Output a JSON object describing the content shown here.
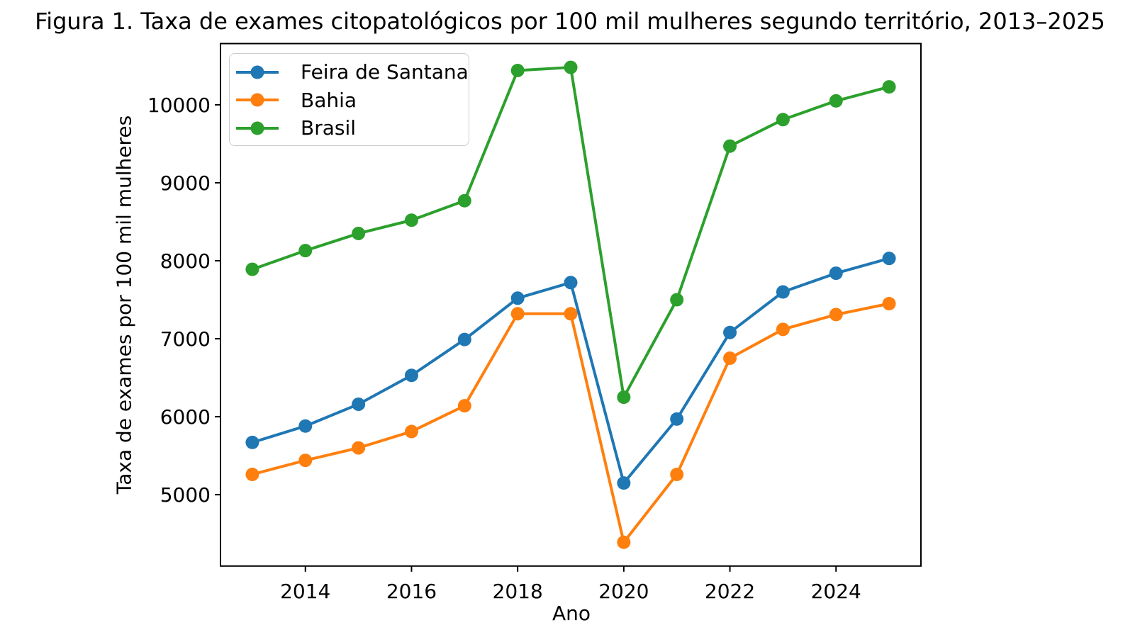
{
  "chart_data": {
    "type": "line",
    "title": "Figura 1. Taxa de exames citopatológicos por 100 mil mulheres segundo território, 2013–2025",
    "xlabel": "Ano",
    "ylabel": "Taxa de exames por 100 mil mulheres",
    "x": [
      2013,
      2014,
      2015,
      2016,
      2017,
      2018,
      2019,
      2020,
      2021,
      2022,
      2023,
      2024,
      2025
    ],
    "series": [
      {
        "name": "Feira de Santana",
        "color": "#1f77b4",
        "values": [
          5670,
          5880,
          6160,
          6530,
          6990,
          7520,
          7720,
          5150,
          5970,
          7080,
          7600,
          7840,
          8030
        ]
      },
      {
        "name": "Bahia",
        "color": "#ff7f0e",
        "values": [
          5260,
          5440,
          5600,
          5810,
          6140,
          7320,
          7320,
          4390,
          5260,
          6750,
          7120,
          7310,
          7450
        ]
      },
      {
        "name": "Brasil",
        "color": "#2ca02c",
        "values": [
          7890,
          8130,
          8350,
          8520,
          8770,
          10440,
          10480,
          6250,
          7500,
          9470,
          9810,
          10050,
          10230
        ]
      }
    ],
    "xticks": [
      2014,
      2016,
      2018,
      2020,
      2022,
      2024
    ],
    "yticks": [
      5000,
      6000,
      7000,
      8000,
      9000,
      10000
    ],
    "xlim": [
      2012.4,
      2025.6
    ],
    "ylim": [
      4085,
      10785
    ],
    "grid": false,
    "legend_position": "upper left",
    "axis_color": "#000000",
    "background_color": "#ffffff"
  }
}
